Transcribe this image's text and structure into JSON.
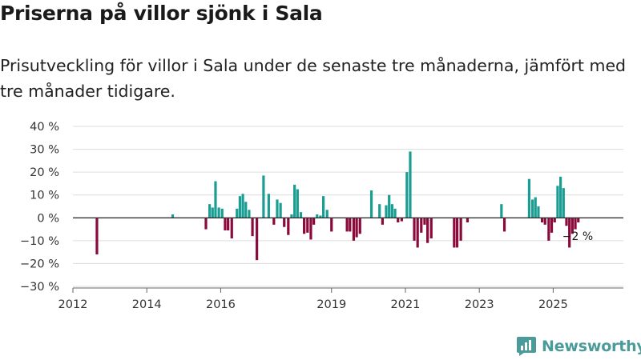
{
  "chart_data": {
    "type": "bar",
    "title": "Priserna på villor sjönk i Sala",
    "subtitle": "Prisutveckling för villor i Sala under de senaste tre månaderna, jämfört med tre månader tidigare.",
    "ylim": [
      -30,
      40
    ],
    "yticks": [
      40,
      30,
      20,
      10,
      0,
      -10,
      -20,
      -30
    ],
    "ytick_labels": [
      "40 %",
      "30 %",
      "20 %",
      "10 %",
      "0 %",
      "−10 %",
      "−20 %",
      "−30 %"
    ],
    "xlim": [
      2012.0,
      2026.9
    ],
    "xticks": [
      2012,
      2014,
      2016,
      2019,
      2021,
      2023,
      2025
    ],
    "xtick_labels": [
      "2012",
      "2014",
      "2016",
      "2019",
      "2021",
      "2023",
      "2025"
    ],
    "colors": {
      "positive": "#1a9e94",
      "negative": "#8b0a3c"
    },
    "series": [
      {
        "name": "Prisutveckling",
        "x": [
          2012.65,
          2014.7,
          2015.6,
          2015.7,
          2015.78,
          2015.86,
          2015.95,
          2016.04,
          2016.12,
          2016.2,
          2016.3,
          2016.44,
          2016.52,
          2016.6,
          2016.68,
          2016.77,
          2016.86,
          2016.98,
          2017.16,
          2017.3,
          2017.44,
          2017.53,
          2017.62,
          2017.72,
          2017.83,
          2017.92,
          2018.0,
          2018.08,
          2018.17,
          2018.26,
          2018.35,
          2018.44,
          2018.52,
          2018.61,
          2018.7,
          2018.78,
          2018.88,
          2019.0,
          2019.42,
          2019.5,
          2019.6,
          2019.68,
          2019.77,
          2020.08,
          2020.3,
          2020.38,
          2020.48,
          2020.56,
          2020.64,
          2020.72,
          2020.8,
          2020.9,
          2021.04,
          2021.13,
          2021.24,
          2021.33,
          2021.43,
          2021.52,
          2021.6,
          2021.7,
          2022.32,
          2022.4,
          2022.5,
          2022.68,
          2023.6,
          2023.68,
          2024.35,
          2024.44,
          2024.52,
          2024.6,
          2024.7,
          2024.78,
          2024.88,
          2024.96,
          2025.04,
          2025.12,
          2025.2,
          2025.28,
          2025.36,
          2025.44,
          2025.52,
          2025.6,
          2025.68
        ],
        "values": [
          -16,
          1.5,
          -5,
          6,
          4.5,
          16,
          4.5,
          4,
          -5.5,
          -5.5,
          -9,
          4,
          9.5,
          10.5,
          7,
          3.5,
          -8,
          -18.5,
          18.5,
          10.5,
          -3,
          8,
          6.5,
          -4,
          -7.5,
          1.5,
          14.5,
          12.5,
          2.5,
          -7,
          -6.5,
          -9.5,
          -3,
          1.5,
          1,
          9.5,
          3.5,
          -6,
          -6,
          -6,
          -10,
          -8.5,
          -7,
          12,
          6,
          -3,
          5.5,
          10,
          6,
          4,
          -2,
          -1.5,
          20,
          29,
          -10,
          -13,
          -6.5,
          -3,
          -11,
          -9,
          -13,
          -13,
          -10,
          -2,
          6,
          -6,
          17,
          8,
          9,
          5,
          -2,
          -3,
          -10,
          -6.5,
          -2,
          14,
          18,
          13,
          -3.5,
          -13,
          -7,
          -5,
          -2
        ]
      }
    ],
    "annotations": [
      {
        "x": 2025.68,
        "value": -2,
        "text": "−2 %"
      }
    ]
  },
  "brand": {
    "name": "Newsworthy",
    "icon": "newsworthy-logo-icon"
  }
}
